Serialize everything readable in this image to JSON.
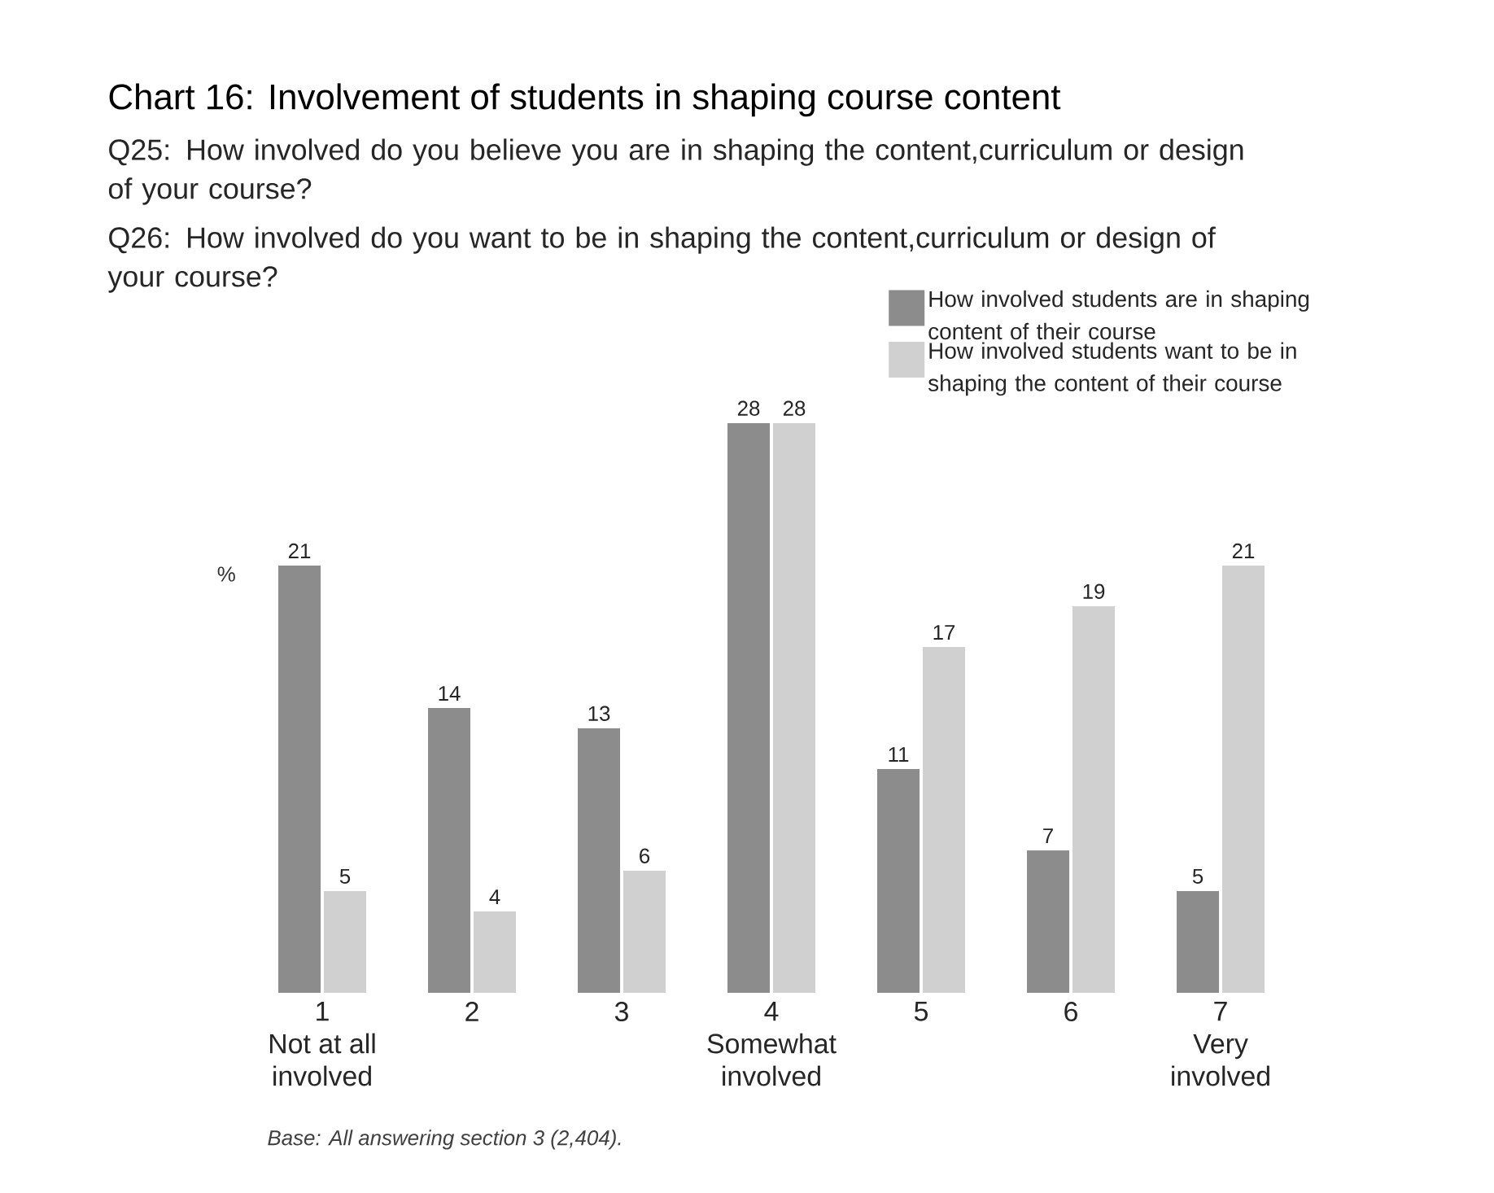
{
  "chart_data": {
    "type": "bar",
    "title": "Chart 16: Involvement of students in shaping course content",
    "subtitle": "Q25: How involved do you believe you are in shaping the content,curriculum or design of your course?",
    "ylabel": "%",
    "categories": [
      "1\nNot at all\ninvolved",
      "2",
      "3",
      "4\nSomewhat\ninvolved",
      "5",
      "6",
      "7\nVery\ninvolved"
    ],
    "series": [
      {
        "name": "How involved students are in shaping content of their course",
        "color": "#8c8c8c",
        "values": [
          21,
          14,
          13,
          28,
          11,
          7,
          5
        ]
      },
      {
        "name": "How involved students want to be in shaping the content of their course",
        "color": "#d0d0d0",
        "values": [
          5,
          4,
          6,
          28,
          17,
          19,
          21
        ]
      }
    ],
    "data_labels": true,
    "legend": "top right",
    "annotations": [
      "Q26: How involved do you want to be in shaping the content,curriculum or design of your course?",
      "Base: All answering section 3 (2,404)."
    ]
  }
}
